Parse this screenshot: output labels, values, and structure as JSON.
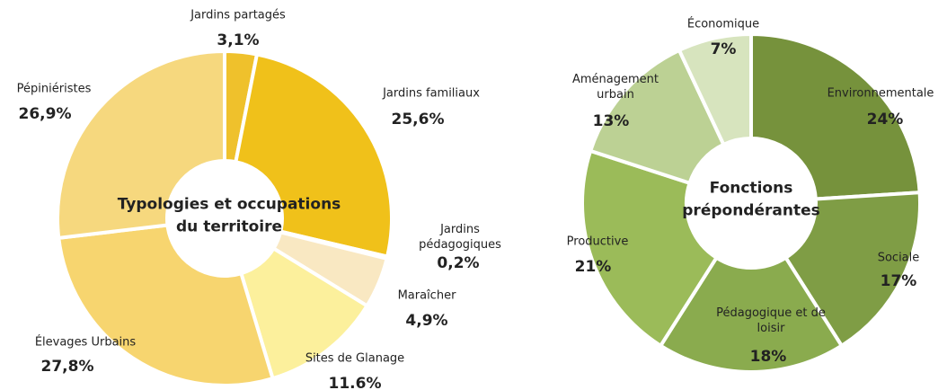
{
  "chart_data": [
    {
      "type": "donut",
      "title": [
        "Typologies et occupations",
        "du territoire"
      ],
      "categories": [
        "Jardins partagés",
        "Jardins familiaux",
        "Jardins pédagogiques",
        "Maraîcher",
        "Sites de Glanage",
        "Élevages Urbains",
        "Pépiniéristes"
      ],
      "values": [
        3.1,
        25.6,
        0.2,
        4.9,
        11.6,
        27.8,
        26.9
      ],
      "value_labels": [
        "3,1%",
        "25,6%",
        "0,2%",
        "4,9%",
        "11.6%",
        "27,8%",
        "26,9%"
      ],
      "colors": [
        "#efc12c",
        "#f0c11a",
        "#f5dc80",
        "#f9e8c2",
        "#fcf09c",
        "#f7d56f",
        "#f6d87e"
      ]
    },
    {
      "type": "donut",
      "title": [
        "Fonctions",
        "prépondérantes"
      ],
      "categories": [
        "Environnementale",
        "Sociale",
        "Pédagogique et de loisir",
        "Productive",
        "Aménagement urbain",
        "Économique"
      ],
      "values": [
        24,
        17,
        18,
        21,
        13,
        7
      ],
      "value_labels": [
        "24%",
        "17%",
        "18%",
        "21%",
        "13%",
        "7%"
      ],
      "colors": [
        "#76923c",
        "#7f9d45",
        "#8aab4e",
        "#9bbb59",
        "#bcd194",
        "#d7e4be"
      ]
    }
  ]
}
